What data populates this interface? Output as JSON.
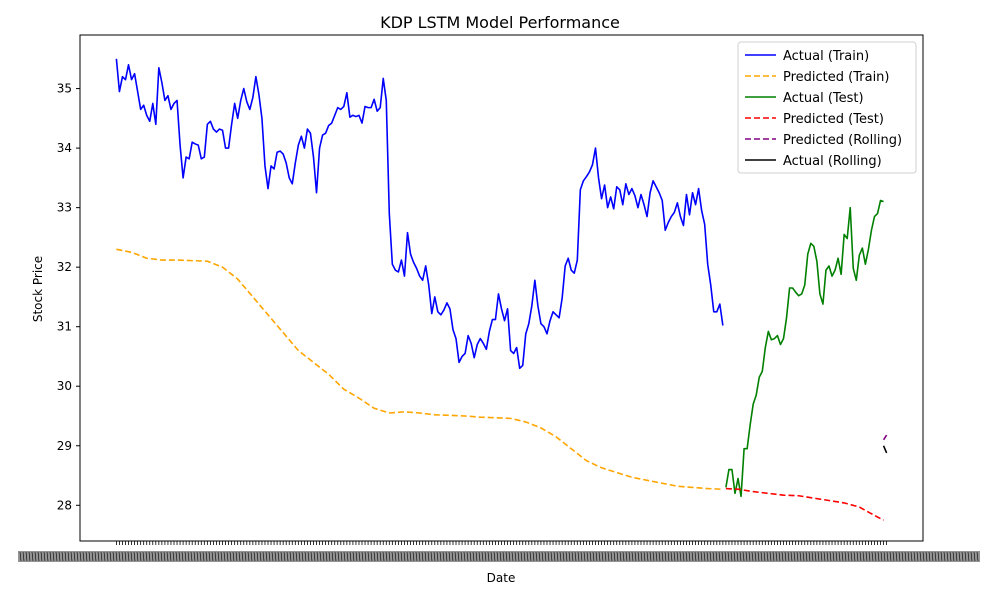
{
  "chart_data": {
    "type": "line",
    "title": "KDP LSTM Model Performance",
    "xlabel": "Date",
    "ylabel": "Stock Price",
    "ylim": [
      27.4,
      35.9
    ],
    "yticks": [
      28,
      29,
      30,
      31,
      32,
      33,
      34,
      35
    ],
    "x_tick_labels_note": "",
    "legend_position": "top-right",
    "grid": false,
    "series": [
      {
        "name": "Actual (Train)",
        "color": "#0000ff",
        "dash": "solid",
        "points": [
          [
            0,
            35.5
          ],
          [
            1,
            34.95
          ],
          [
            2,
            35.2
          ],
          [
            3,
            35.15
          ],
          [
            4,
            35.4
          ],
          [
            5,
            35.15
          ],
          [
            6,
            35.25
          ],
          [
            7,
            34.95
          ],
          [
            8,
            34.65
          ],
          [
            9,
            34.72
          ],
          [
            10,
            34.55
          ],
          [
            11,
            34.45
          ],
          [
            12,
            34.75
          ],
          [
            13,
            34.4
          ],
          [
            14,
            35.35
          ],
          [
            15,
            35.1
          ],
          [
            16,
            34.8
          ],
          [
            17,
            34.88
          ],
          [
            18,
            34.65
          ],
          [
            19,
            34.75
          ],
          [
            20,
            34.8
          ],
          [
            21,
            34.05
          ],
          [
            22,
            33.5
          ],
          [
            23,
            33.85
          ],
          [
            24,
            33.82
          ],
          [
            25,
            34.1
          ],
          [
            26,
            34.07
          ],
          [
            27,
            34.05
          ],
          [
            28,
            33.82
          ],
          [
            29,
            33.85
          ],
          [
            30,
            34.4
          ],
          [
            31,
            34.45
          ],
          [
            32,
            34.32
          ],
          [
            33,
            34.27
          ],
          [
            34,
            34.32
          ],
          [
            35,
            34.3
          ],
          [
            36,
            34.0
          ],
          [
            37,
            34.0
          ],
          [
            38,
            34.4
          ],
          [
            39,
            34.75
          ],
          [
            40,
            34.5
          ],
          [
            41,
            34.8
          ],
          [
            42,
            35.0
          ],
          [
            43,
            34.78
          ],
          [
            44,
            34.65
          ],
          [
            45,
            34.85
          ],
          [
            46,
            35.2
          ],
          [
            47,
            34.9
          ],
          [
            48,
            34.5
          ],
          [
            49,
            33.7
          ],
          [
            50,
            33.32
          ],
          [
            51,
            33.7
          ],
          [
            52,
            33.65
          ],
          [
            53,
            33.93
          ],
          [
            54,
            33.95
          ],
          [
            55,
            33.9
          ],
          [
            56,
            33.75
          ],
          [
            57,
            33.5
          ],
          [
            58,
            33.4
          ],
          [
            59,
            33.75
          ],
          [
            60,
            34.05
          ],
          [
            61,
            34.2
          ],
          [
            62,
            34.0
          ],
          [
            63,
            34.32
          ],
          [
            64,
            34.25
          ],
          [
            65,
            33.85
          ],
          [
            66,
            33.25
          ],
          [
            67,
            34.0
          ],
          [
            68,
            34.22
          ],
          [
            69,
            34.25
          ],
          [
            70,
            34.38
          ],
          [
            71,
            34.42
          ],
          [
            72,
            34.55
          ],
          [
            73,
            34.68
          ],
          [
            74,
            34.65
          ],
          [
            75,
            34.7
          ],
          [
            76,
            34.93
          ],
          [
            77,
            34.52
          ],
          [
            78,
            34.55
          ],
          [
            79,
            34.53
          ],
          [
            80,
            34.55
          ],
          [
            81,
            34.42
          ],
          [
            82,
            34.7
          ],
          [
            83,
            34.68
          ],
          [
            84,
            34.68
          ],
          [
            85,
            34.82
          ],
          [
            86,
            34.62
          ],
          [
            87,
            34.68
          ],
          [
            88,
            35.17
          ],
          [
            89,
            34.8
          ],
          [
            90,
            32.9
          ],
          [
            91,
            32.05
          ],
          [
            92,
            31.95
          ],
          [
            93,
            31.92
          ],
          [
            94,
            32.12
          ],
          [
            95,
            31.85
          ],
          [
            96,
            32.58
          ],
          [
            97,
            32.22
          ],
          [
            98,
            32.08
          ],
          [
            99,
            31.98
          ],
          [
            100,
            31.85
          ],
          [
            101,
            31.78
          ],
          [
            102,
            32.02
          ],
          [
            103,
            31.7
          ],
          [
            104,
            31.22
          ],
          [
            105,
            31.5
          ],
          [
            106,
            31.25
          ],
          [
            107,
            31.2
          ],
          [
            108,
            31.28
          ],
          [
            109,
            31.4
          ],
          [
            110,
            31.3
          ],
          [
            111,
            30.95
          ],
          [
            112,
            30.8
          ],
          [
            113,
            30.4
          ],
          [
            114,
            30.5
          ],
          [
            115,
            30.55
          ],
          [
            116,
            30.85
          ],
          [
            117,
            30.72
          ],
          [
            118,
            30.48
          ],
          [
            119,
            30.7
          ],
          [
            120,
            30.8
          ],
          [
            121,
            30.72
          ],
          [
            122,
            30.62
          ],
          [
            123,
            30.92
          ],
          [
            124,
            31.12
          ],
          [
            125,
            31.12
          ],
          [
            126,
            31.55
          ],
          [
            127,
            31.3
          ],
          [
            128,
            31.1
          ],
          [
            129,
            31.3
          ],
          [
            130,
            30.6
          ],
          [
            131,
            30.55
          ],
          [
            132,
            30.65
          ],
          [
            133,
            30.3
          ],
          [
            134,
            30.35
          ],
          [
            135,
            30.88
          ],
          [
            136,
            31.05
          ],
          [
            137,
            31.35
          ],
          [
            138,
            31.78
          ],
          [
            139,
            31.35
          ],
          [
            140,
            31.05
          ],
          [
            141,
            31.0
          ],
          [
            142,
            30.88
          ],
          [
            143,
            31.1
          ],
          [
            144,
            31.25
          ],
          [
            145,
            31.2
          ],
          [
            146,
            31.15
          ],
          [
            147,
            31.48
          ],
          [
            148,
            32.02
          ],
          [
            149,
            32.15
          ],
          [
            150,
            31.95
          ],
          [
            151,
            31.9
          ],
          [
            152,
            32.12
          ],
          [
            153,
            33.3
          ],
          [
            154,
            33.45
          ],
          [
            155,
            33.52
          ],
          [
            156,
            33.6
          ],
          [
            157,
            33.72
          ],
          [
            158,
            34.0
          ],
          [
            159,
            33.5
          ],
          [
            160,
            33.15
          ],
          [
            161,
            33.38
          ],
          [
            162,
            33.0
          ],
          [
            163,
            33.18
          ],
          [
            164,
            32.98
          ],
          [
            165,
            33.35
          ],
          [
            166,
            33.3
          ],
          [
            167,
            33.05
          ],
          [
            168,
            33.4
          ],
          [
            169,
            33.22
          ],
          [
            170,
            33.32
          ],
          [
            171,
            33.2
          ],
          [
            172,
            33.0
          ],
          [
            173,
            33.22
          ],
          [
            174,
            33.05
          ],
          [
            175,
            32.85
          ],
          [
            176,
            33.25
          ],
          [
            177,
            33.45
          ],
          [
            178,
            33.35
          ],
          [
            179,
            33.25
          ],
          [
            180,
            33.12
          ],
          [
            181,
            32.62
          ],
          [
            182,
            32.75
          ],
          [
            183,
            32.85
          ],
          [
            184,
            32.92
          ],
          [
            185,
            33.08
          ],
          [
            186,
            32.85
          ],
          [
            187,
            32.7
          ],
          [
            188,
            33.22
          ],
          [
            189,
            32.88
          ],
          [
            190,
            33.25
          ],
          [
            191,
            33.05
          ],
          [
            192,
            33.32
          ],
          [
            193,
            32.95
          ],
          [
            194,
            32.72
          ],
          [
            195,
            32.05
          ],
          [
            196,
            31.7
          ],
          [
            197,
            31.25
          ],
          [
            198,
            31.25
          ],
          [
            199,
            31.38
          ],
          [
            200,
            31.02
          ]
        ]
      },
      {
        "name": "Predicted (Train)",
        "color": "#ffa500",
        "dash": "dashed",
        "points": [
          [
            0,
            32.3
          ],
          [
            5,
            32.25
          ],
          [
            10,
            32.15
          ],
          [
            15,
            32.12
          ],
          [
            20,
            32.12
          ],
          [
            25,
            32.11
          ],
          [
            30,
            32.1
          ],
          [
            35,
            32.0
          ],
          [
            40,
            31.8
          ],
          [
            45,
            31.5
          ],
          [
            50,
            31.2
          ],
          [
            55,
            30.9
          ],
          [
            60,
            30.6
          ],
          [
            65,
            30.4
          ],
          [
            70,
            30.2
          ],
          [
            75,
            29.95
          ],
          [
            80,
            29.8
          ],
          [
            85,
            29.63
          ],
          [
            90,
            29.55
          ],
          [
            95,
            29.57
          ],
          [
            100,
            29.55
          ],
          [
            105,
            29.52
          ],
          [
            110,
            29.51
          ],
          [
            115,
            29.5
          ],
          [
            120,
            29.48
          ],
          [
            125,
            29.47
          ],
          [
            130,
            29.46
          ],
          [
            135,
            29.4
          ],
          [
            140,
            29.3
          ],
          [
            145,
            29.15
          ],
          [
            150,
            28.95
          ],
          [
            155,
            28.75
          ],
          [
            160,
            28.63
          ],
          [
            165,
            28.55
          ],
          [
            170,
            28.47
          ],
          [
            175,
            28.42
          ],
          [
            180,
            28.37
          ],
          [
            185,
            28.32
          ],
          [
            190,
            28.3
          ],
          [
            195,
            28.28
          ],
          [
            200,
            28.27
          ]
        ]
      },
      {
        "name": "Actual (Test)",
        "color": "#008000",
        "dash": "solid",
        "points": [
          [
            201,
            28.3
          ],
          [
            202,
            28.6
          ],
          [
            203,
            28.6
          ],
          [
            204,
            28.2
          ],
          [
            205,
            28.45
          ],
          [
            206,
            28.15
          ],
          [
            207,
            28.95
          ],
          [
            208,
            28.95
          ],
          [
            209,
            29.35
          ],
          [
            210,
            29.7
          ],
          [
            211,
            29.85
          ],
          [
            212,
            30.15
          ],
          [
            213,
            30.25
          ],
          [
            214,
            30.65
          ],
          [
            215,
            30.92
          ],
          [
            216,
            30.78
          ],
          [
            217,
            30.8
          ],
          [
            218,
            30.85
          ],
          [
            219,
            30.7
          ],
          [
            220,
            30.8
          ],
          [
            221,
            31.15
          ],
          [
            222,
            31.65
          ],
          [
            223,
            31.65
          ],
          [
            224,
            31.58
          ],
          [
            225,
            31.52
          ],
          [
            226,
            31.55
          ],
          [
            227,
            31.7
          ],
          [
            228,
            32.22
          ],
          [
            229,
            32.4
          ],
          [
            230,
            32.35
          ],
          [
            231,
            32.1
          ],
          [
            232,
            31.55
          ],
          [
            233,
            31.38
          ],
          [
            234,
            31.95
          ],
          [
            235,
            32.02
          ],
          [
            236,
            31.85
          ],
          [
            237,
            31.95
          ],
          [
            238,
            32.15
          ],
          [
            239,
            31.88
          ],
          [
            240,
            32.55
          ],
          [
            241,
            32.48
          ],
          [
            242,
            33.0
          ],
          [
            243,
            31.98
          ],
          [
            244,
            31.78
          ],
          [
            245,
            32.2
          ],
          [
            246,
            32.32
          ],
          [
            247,
            32.05
          ],
          [
            248,
            32.3
          ],
          [
            249,
            32.62
          ],
          [
            250,
            32.85
          ],
          [
            251,
            32.9
          ],
          [
            252,
            33.12
          ],
          [
            253,
            33.1
          ]
        ]
      },
      {
        "name": "Predicted (Test)",
        "color": "#ff0000",
        "dash": "dashed",
        "points": [
          [
            201,
            28.28
          ],
          [
            205,
            28.27
          ],
          [
            210,
            28.23
          ],
          [
            215,
            28.2
          ],
          [
            220,
            28.17
          ],
          [
            225,
            28.16
          ],
          [
            230,
            28.12
          ],
          [
            235,
            28.08
          ],
          [
            240,
            28.04
          ],
          [
            245,
            27.97
          ],
          [
            250,
            27.83
          ],
          [
            253,
            27.75
          ]
        ]
      },
      {
        "name": "Predicted (Rolling)",
        "color": "#800080",
        "dash": "dashed",
        "points": [
          [
            253,
            29.1
          ],
          [
            254,
            29.18
          ]
        ]
      },
      {
        "name": "Actual (Rolling)",
        "color": "#000000",
        "dash": "solid",
        "points": [
          [
            253,
            29.0
          ],
          [
            254,
            28.88
          ]
        ]
      }
    ],
    "xlim": [
      -12,
      266
    ]
  }
}
